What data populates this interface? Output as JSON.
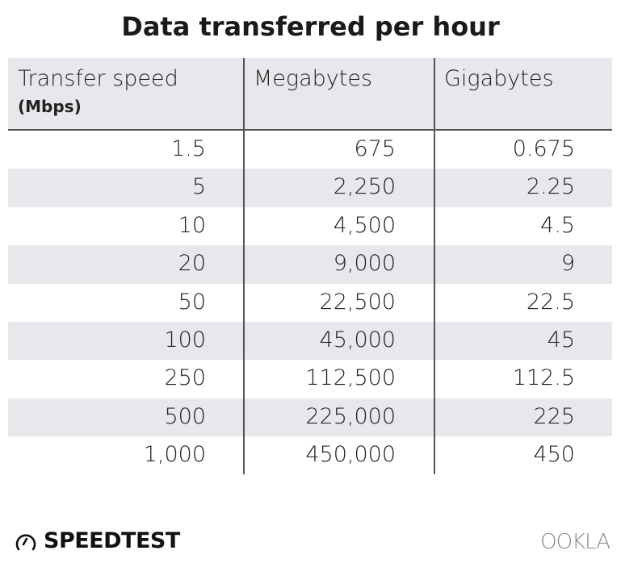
{
  "title": "Data transferred per hour",
  "chart_data": {
    "type": "table",
    "title": "Data transferred per hour",
    "columns": [
      "Transfer speed",
      "Megabytes",
      "Gigabytes"
    ],
    "column_subtitles": [
      "(Mbps)",
      "",
      ""
    ],
    "rows": [
      [
        "1.5",
        "675",
        "0.675"
      ],
      [
        "5",
        "2,250",
        "2.25"
      ],
      [
        "10",
        "4,500",
        "4.5"
      ],
      [
        "20",
        "9,000",
        "9"
      ],
      [
        "50",
        "22,500",
        "22.5"
      ],
      [
        "100",
        "45,000",
        "45"
      ],
      [
        "250",
        "112,500",
        "112.5"
      ],
      [
        "500",
        "225,000",
        "225"
      ],
      [
        "1,000",
        "450,000",
        "450"
      ]
    ],
    "header_background": "#e8e8ec",
    "stripe_color": "#e8e8ec"
  },
  "footer": {
    "brand_left": "SPEEDTEST",
    "brand_right": "OOKLA",
    "left_icon": "speedometer-icon"
  }
}
